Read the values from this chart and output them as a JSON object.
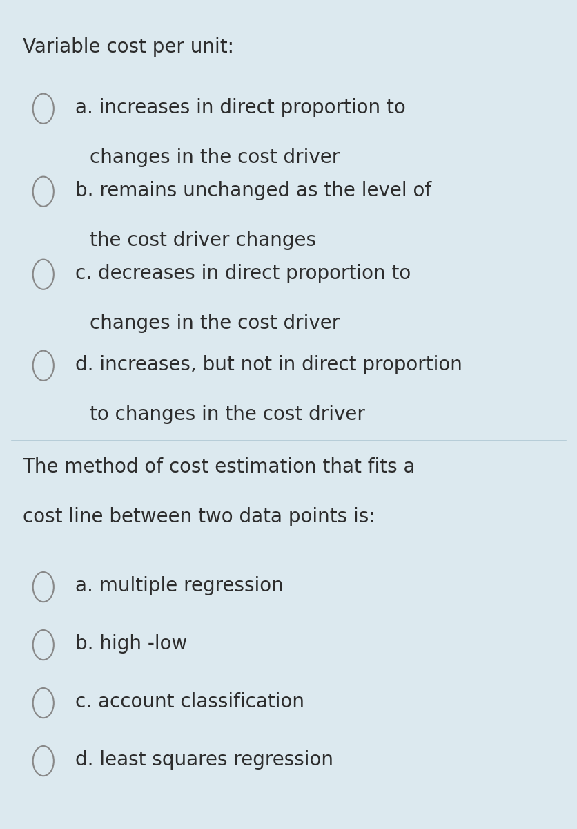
{
  "background_color": "#dce9ef",
  "divider_color": "#b0c8d4",
  "text_color": "#2d2d2d",
  "circle_edge_color": "#888888",
  "circle_face_color": "#dce9ef",
  "q1_title": "Variable cost per unit:",
  "q1_options": [
    [
      "a. increases in direct proportion to",
      "changes in the cost driver"
    ],
    [
      "b. remains unchanged as the level of",
      "the cost driver changes"
    ],
    [
      "c. decreases in direct proportion to",
      "changes in the cost driver"
    ],
    [
      "d. increases, but not in direct proportion",
      "to changes in the cost driver"
    ]
  ],
  "q2_title_line1": "The method of cost estimation that fits a",
  "q2_title_line2": "cost line between two data points is:",
  "q2_options": [
    [
      "a. multiple regression"
    ],
    [
      "b. high -low"
    ],
    [
      "c. account classification"
    ],
    [
      "d. least squares regression"
    ]
  ],
  "font_size_title": 20,
  "font_size_option": 20,
  "font_family": "DejaVu Sans"
}
